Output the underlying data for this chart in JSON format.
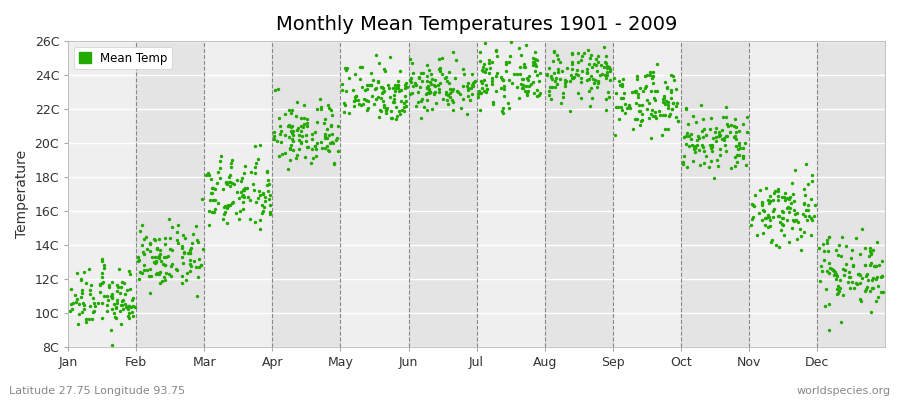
{
  "title": "Monthly Mean Temperatures 1901 - 2009",
  "ylabel": "Temperature",
  "xlabel_bottom_left": "Latitude 27.75 Longitude 93.75",
  "xlabel_bottom_right": "worldspecies.org",
  "ytick_labels": [
    "8C",
    "10C",
    "12C",
    "14C",
    "16C",
    "18C",
    "20C",
    "22C",
    "24C",
    "26C"
  ],
  "ytick_values": [
    8,
    10,
    12,
    14,
    16,
    18,
    20,
    22,
    24,
    26
  ],
  "ylim": [
    8,
    26
  ],
  "months": [
    "Jan",
    "Feb",
    "Mar",
    "Apr",
    "May",
    "Jun",
    "Jul",
    "Aug",
    "Sep",
    "Oct",
    "Nov",
    "Dec"
  ],
  "month_mean_temps": [
    10.8,
    13.2,
    17.0,
    20.5,
    23.0,
    23.4,
    23.8,
    24.0,
    22.5,
    20.0,
    16.0,
    12.5
  ],
  "month_std_temps": [
    0.9,
    0.9,
    1.1,
    1.0,
    0.9,
    0.8,
    0.8,
    0.8,
    0.9,
    1.0,
    1.1,
    1.1
  ],
  "dot_color": "#22aa00",
  "bg_band_even": "#efefef",
  "bg_band_odd": "#e4e4e4",
  "figure_bg": "#ffffff",
  "title_fontsize": 14,
  "axis_label_fontsize": 10,
  "tick_fontsize": 9,
  "legend_label": "Mean Temp",
  "num_years": 109,
  "year_start": 1901,
  "year_end": 2009
}
